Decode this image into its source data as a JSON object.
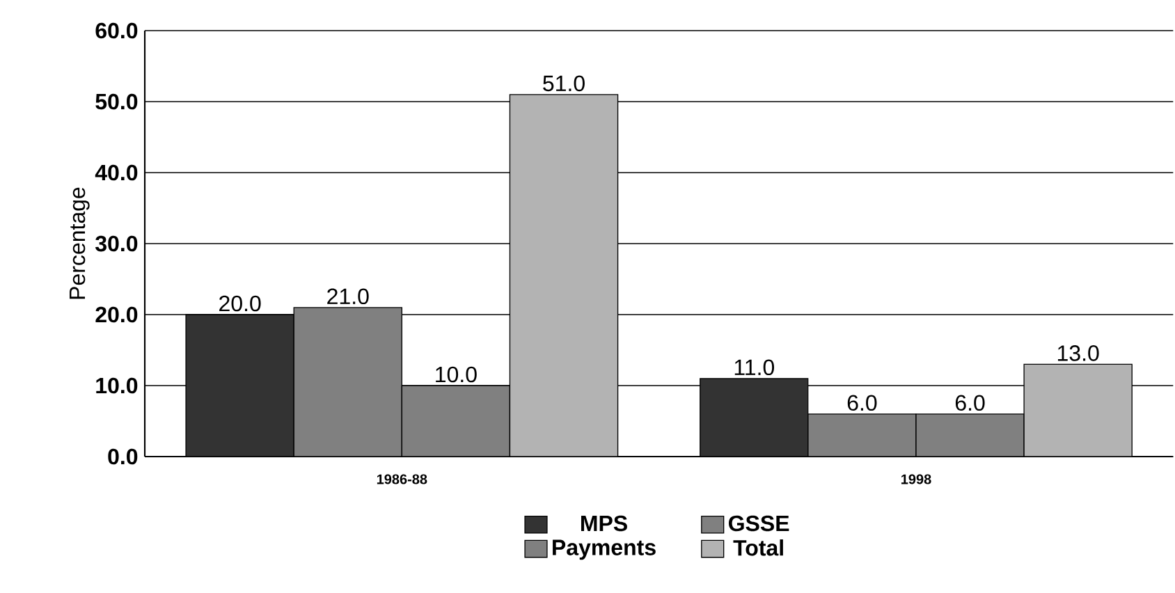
{
  "chart_data": {
    "type": "bar",
    "ylabel": "Percentage",
    "categories": [
      "1986-88",
      "1998"
    ],
    "series": [
      {
        "name": "MPS",
        "color": "#333333",
        "values": [
          20.0,
          11.0
        ],
        "value_labels": [
          "20.0",
          "11.0"
        ]
      },
      {
        "name": "GSSE",
        "color": "#808080",
        "values": [
          21.0,
          6.0
        ],
        "value_labels": [
          "21.0",
          "6.0"
        ]
      },
      {
        "name": "Payments",
        "color": "#808080",
        "values": [
          10.0,
          6.0
        ],
        "value_labels": [
          "10.0",
          "6.0"
        ]
      },
      {
        "name": "Total",
        "color": "#b3b3b3",
        "values": [
          51.0,
          13.0
        ],
        "value_labels": [
          "51.0",
          "13.0"
        ]
      }
    ],
    "ylim": [
      0,
      60
    ],
    "yticks": [
      {
        "value": 0,
        "label": "0.0"
      },
      {
        "value": 10,
        "label": "10.0"
      },
      {
        "value": 20,
        "label": "20.0"
      },
      {
        "value": 30,
        "label": "30.0"
      },
      {
        "value": 40,
        "label": "40.0"
      },
      {
        "value": 50,
        "label": "50.0"
      },
      {
        "value": 60,
        "label": "60.0"
      }
    ],
    "grid": "y",
    "legend": "bottom"
  }
}
